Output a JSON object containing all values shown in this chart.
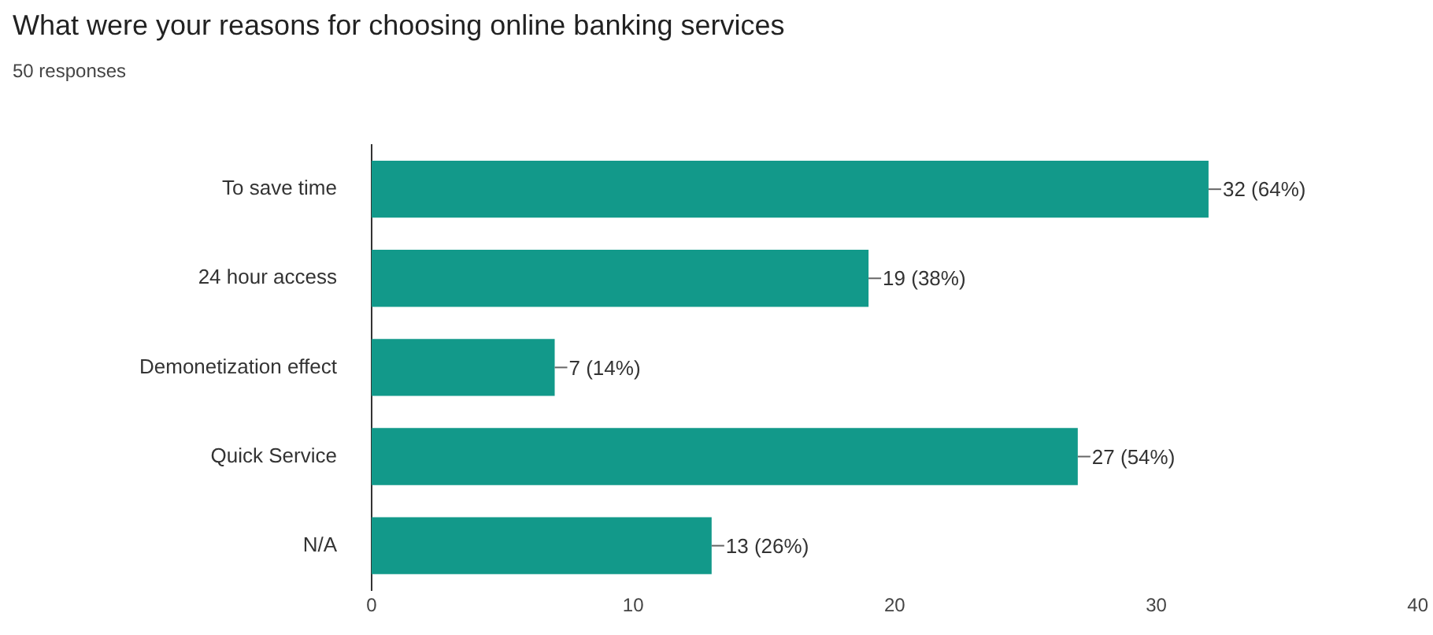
{
  "chart_data": {
    "type": "bar",
    "orientation": "horizontal",
    "title": "What were your reasons for choosing online banking services",
    "subtitle": "50 responses",
    "categories": [
      "To save time",
      "24 hour access",
      "Demonetization effect",
      "Quick Service",
      "N/A"
    ],
    "values": [
      32,
      19,
      7,
      27,
      13
    ],
    "color": "#12998a",
    "value_labels": [
      "32 (64%)",
      "19 (38%)",
      "7 (14%)",
      "27 (54%)",
      "13 (26%)"
    ],
    "xlim": [
      0,
      40
    ],
    "xticks": [
      0,
      10,
      20,
      30,
      40
    ],
    "grid": false,
    "legend": false
  }
}
